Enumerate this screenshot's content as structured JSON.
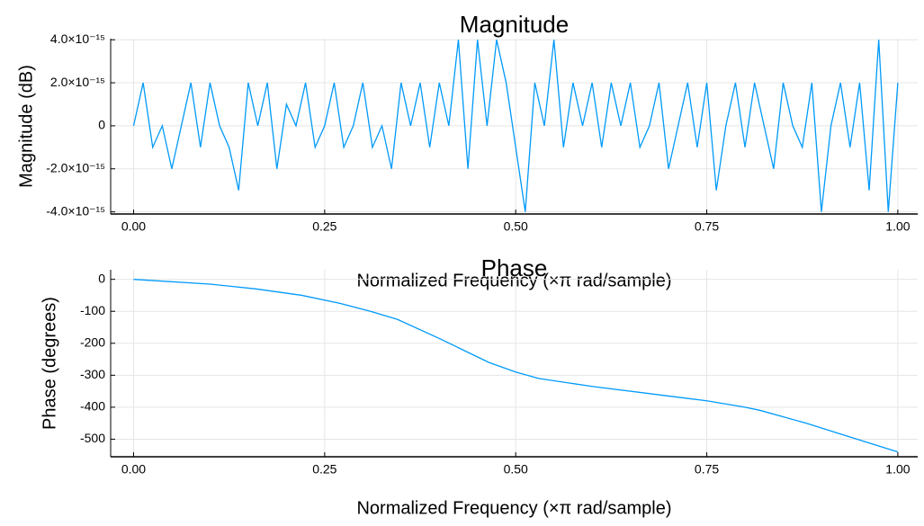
{
  "chart_data": [
    {
      "type": "line",
      "title": "Magnitude",
      "xlabel": "Normalized Frequency (×π rad/sample)",
      "ylabel": "Magnitude (dB)",
      "x": [
        0,
        0.0125,
        0.025,
        0.0375,
        0.05,
        0.0625,
        0.075,
        0.0875,
        0.1,
        0.1125,
        0.125,
        0.1375,
        0.15,
        0.1625,
        0.175,
        0.1875,
        0.2,
        0.2125,
        0.225,
        0.2375,
        0.25,
        0.2625,
        0.275,
        0.2875,
        0.3,
        0.3125,
        0.325,
        0.3375,
        0.35,
        0.3625,
        0.375,
        0.3875,
        0.4,
        0.4125,
        0.425,
        0.4375,
        0.45,
        0.4625,
        0.475,
        0.4875,
        0.5,
        0.5125,
        0.525,
        0.5375,
        0.55,
        0.5625,
        0.575,
        0.5875,
        0.6,
        0.6125,
        0.625,
        0.6375,
        0.65,
        0.6625,
        0.675,
        0.6875,
        0.7,
        0.7125,
        0.725,
        0.7375,
        0.75,
        0.7625,
        0.775,
        0.7875,
        0.8,
        0.8125,
        0.825,
        0.8375,
        0.85,
        0.8625,
        0.875,
        0.8875,
        0.9,
        0.9125,
        0.925,
        0.9375,
        0.95,
        0.9625,
        0.975,
        0.9875,
        1
      ],
      "series": [
        {
          "name": "y1",
          "color": "#009af9",
          "values": [
            0,
            2e-15,
            -1e-15,
            0,
            -2e-15,
            0,
            2e-15,
            -1e-15,
            2e-15,
            0,
            -1e-15,
            -3e-15,
            2e-15,
            0,
            2e-15,
            -2e-15,
            1e-15,
            0,
            2e-15,
            -1e-15,
            0,
            2e-15,
            -1e-15,
            0,
            2e-15,
            -1e-15,
            0,
            -2e-15,
            2e-15,
            0,
            2e-15,
            -1e-15,
            2e-15,
            0,
            4e-15,
            -2e-15,
            4e-15,
            0,
            4e-15,
            2e-15,
            -1e-15,
            -4e-15,
            2e-15,
            0,
            4e-15,
            -1e-15,
            2e-15,
            0,
            2e-15,
            -1e-15,
            2e-15,
            0,
            2e-15,
            -1e-15,
            0,
            2e-15,
            -2e-15,
            0,
            2e-15,
            -1e-15,
            2e-15,
            -3e-15,
            0,
            2e-15,
            -1e-15,
            2e-15,
            0,
            -2e-15,
            2e-15,
            0,
            -1e-15,
            2e-15,
            -4e-15,
            0,
            2e-15,
            -1e-15,
            2e-15,
            -3e-15,
            4e-15,
            -4e-15,
            2e-15
          ]
        }
      ],
      "xlim": [
        -0.03,
        1.026
      ],
      "xticks": [
        {
          "value": 0,
          "label": "0.00"
        },
        {
          "value": 0.25,
          "label": "0.25"
        },
        {
          "value": 0.5,
          "label": "0.50"
        },
        {
          "value": 0.75,
          "label": "0.75"
        },
        {
          "value": 1,
          "label": "1.00"
        }
      ],
      "ylim": [
        -4.1e-15,
        4.05e-15
      ],
      "yticks": [
        {
          "value": 4e-15,
          "label": "4.0×10⁻¹⁵"
        },
        {
          "value": 2e-15,
          "label": "2.0×10⁻¹⁵"
        },
        0,
        {
          "value": -2e-15,
          "label": "-2.0×10⁻¹⁵"
        },
        {
          "value": -4e-15,
          "label": "-4.0×10⁻¹⁵"
        }
      ],
      "grid": true
    },
    {
      "type": "line",
      "title": "Phase",
      "xlabel": "Normalized Frequency (×π rad/sample)",
      "ylabel": "Phase (degrees)",
      "x": [
        0,
        0.1,
        0.16,
        0.22,
        0.27,
        0.31,
        0.345,
        0.4,
        0.465,
        0.5,
        0.53,
        0.6,
        0.7,
        0.75,
        0.8,
        0.82,
        0.88,
        0.92,
        0.96,
        1
      ],
      "series": [
        {
          "name": "y1",
          "color": "#009af9",
          "values": [
            0,
            -15,
            -30,
            -50,
            -75,
            -100,
            -125,
            -185,
            -260,
            -290,
            -310,
            -335,
            -365,
            -380,
            -400,
            -410,
            -450,
            -480,
            -510,
            -540
          ]
        }
      ],
      "xlim": [
        -0.03,
        1.026
      ],
      "xticks": [
        {
          "value": 0,
          "label": "0.00"
        },
        {
          "value": 0.25,
          "label": "0.25"
        },
        {
          "value": 0.5,
          "label": "0.50"
        },
        {
          "value": 0.75,
          "label": "0.75"
        },
        {
          "value": 1,
          "label": "1.00"
        }
      ],
      "ylim": [
        -555,
        30
      ],
      "yticks": [
        0,
        -100,
        -200,
        -300,
        -400,
        -500
      ],
      "grid": true
    }
  ]
}
